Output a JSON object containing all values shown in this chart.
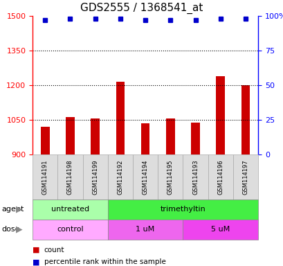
{
  "title": "GDS2555 / 1368541_at",
  "samples": [
    "GSM114191",
    "GSM114198",
    "GSM114199",
    "GSM114192",
    "GSM114194",
    "GSM114195",
    "GSM114193",
    "GSM114196",
    "GSM114197"
  ],
  "bar_values": [
    1020,
    1060,
    1055,
    1215,
    1035,
    1055,
    1037,
    1240,
    1200
  ],
  "percentile_values": [
    97,
    98,
    98,
    98,
    97,
    97,
    97,
    98,
    98
  ],
  "bar_color": "#cc0000",
  "dot_color": "#0000cc",
  "ylim_left": [
    900,
    1500
  ],
  "ylim_right": [
    0,
    100
  ],
  "yticks_left": [
    900,
    1050,
    1200,
    1350,
    1500
  ],
  "yticks_right": [
    0,
    25,
    50,
    75,
    100
  ],
  "ytick_labels_right": [
    "0",
    "25",
    "50",
    "75",
    "100%"
  ],
  "dotted_lines": [
    1050,
    1200,
    1350
  ],
  "agent_groups": [
    {
      "label": "untreated",
      "start": 0,
      "end": 3,
      "color": "#aaffaa"
    },
    {
      "label": "trimethyltin",
      "start": 3,
      "end": 9,
      "color": "#44ee44"
    }
  ],
  "dose_groups": [
    {
      "label": "control",
      "start": 0,
      "end": 3,
      "color": "#ffaaff"
    },
    {
      "label": "1 uM",
      "start": 3,
      "end": 6,
      "color": "#ee66ee"
    },
    {
      "label": "5 uM",
      "start": 6,
      "end": 9,
      "color": "#ee44ee"
    }
  ],
  "agent_label": "agent",
  "dose_label": "dose",
  "legend_count_label": "count",
  "legend_percentile_label": "percentile rank within the sample",
  "title_fontsize": 11,
  "tick_fontsize": 8,
  "label_fontsize": 8,
  "bar_width": 0.35,
  "dot_size": 5
}
